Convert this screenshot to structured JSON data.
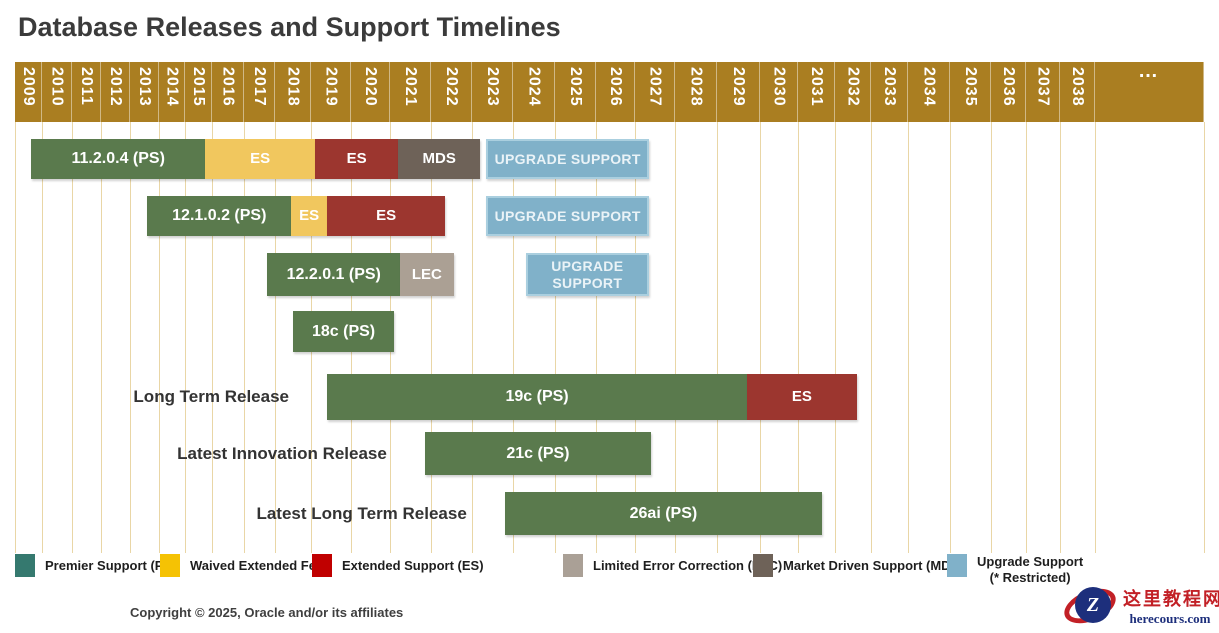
{
  "title": "Database Releases and Support Timelines",
  "footer": {
    "copyright": "Copyright © 2025, Oracle and/or its affiliates"
  },
  "watermark": {
    "letter": "Z",
    "site_name": "这里教程网",
    "site_url": "herecours.com"
  },
  "colors": {
    "header_band": "#aa7e21",
    "grid_line": "#e9d6a6",
    "bar_ps": "#5a7a4d",
    "bar_waived": "#f1c75e",
    "bar_es": "#9c362f",
    "bar_mds": "#6e6258",
    "bar_lec": "#aba094",
    "bar_upgrade": "#80b1c9",
    "bar_upgrade_border": "#aacfdf",
    "legend_ps": "#35796f",
    "legend_waived": "#f5c204",
    "legend_es": "#c00000",
    "legend_lec": "#aaa096",
    "legend_mds": "#6e6258",
    "legend_upgrade": "#80b1c9"
  },
  "chart_data": {
    "type": "gantt",
    "title": "Database Releases and Support Timelines",
    "x_axis": {
      "start_year": 2009,
      "end_year": 2038,
      "overflow_label": "…",
      "years": [
        "2009",
        "2010",
        "2011",
        "2012",
        "2013",
        "2014",
        "2015",
        "2016",
        "2017",
        "2018",
        "2019",
        "2020",
        "2021",
        "2022",
        "2023",
        "2024",
        "2025",
        "2026",
        "2027",
        "2028",
        "2029",
        "2030",
        "2031",
        "2032",
        "2033",
        "2034",
        "2035",
        "2036",
        "2037",
        "2038"
      ]
    },
    "rows": [
      {
        "release": "11.2.0.4",
        "row_label": "",
        "segments": [
          {
            "kind": "ps",
            "label": "11.2.0.4 (PS)",
            "start": 2009.6,
            "end": 2015.75
          },
          {
            "kind": "waived",
            "label": "ES",
            "start": 2015.75,
            "end": 2019.1
          },
          {
            "kind": "es",
            "label": "ES",
            "start": 2019.1,
            "end": 2021.2
          },
          {
            "kind": "mds",
            "label": "MDS",
            "start": 2021.2,
            "end": 2023.2
          },
          {
            "kind": "upgrade",
            "label": "UPGRADE SUPPORT",
            "start": 2023.35,
            "end": 2027.35
          }
        ]
      },
      {
        "release": "12.1.0.2",
        "row_label": "",
        "segments": [
          {
            "kind": "ps",
            "label": "12.1.0.2 (PS)",
            "start": 2013.6,
            "end": 2018.45
          },
          {
            "kind": "waived",
            "label": "ES",
            "start": 2018.45,
            "end": 2019.4
          },
          {
            "kind": "es",
            "label": "ES",
            "start": 2019.4,
            "end": 2022.35
          },
          {
            "kind": "upgrade",
            "label": "UPGRADE SUPPORT",
            "start": 2023.35,
            "end": 2027.35
          }
        ]
      },
      {
        "release": "12.2.0.1",
        "row_label": "",
        "segments": [
          {
            "kind": "ps",
            "label": "12.2.0.1 (PS)",
            "start": 2017.75,
            "end": 2021.25
          },
          {
            "kind": "lec",
            "label": "LEC",
            "start": 2021.25,
            "end": 2022.55
          },
          {
            "kind": "upgrade",
            "label": "UPGRADE SUPPORT",
            "start": 2024.3,
            "end": 2027.35
          }
        ]
      },
      {
        "release": "18c",
        "row_label": "",
        "segments": [
          {
            "kind": "ps",
            "label": "18c (PS)",
            "start": 2018.5,
            "end": 2021.1
          }
        ]
      },
      {
        "release": "19c",
        "row_label": "Long Term Release",
        "segments": [
          {
            "kind": "ps",
            "label": "19c (PS)",
            "start": 2019.4,
            "end": 2029.7
          },
          {
            "kind": "es",
            "label": "ES",
            "start": 2029.7,
            "end": 2032.6
          }
        ]
      },
      {
        "release": "21c",
        "row_label": "Latest Innovation Release",
        "segments": [
          {
            "kind": "ps",
            "label": "21c (PS)",
            "start": 2021.85,
            "end": 2027.4
          }
        ]
      },
      {
        "release": "26ai",
        "row_label": "Latest Long Term Release",
        "segments": [
          {
            "kind": "ps",
            "label": "26ai (PS)",
            "start": 2023.8,
            "end": 2031.65
          }
        ]
      }
    ],
    "legend": [
      {
        "kind": "ps",
        "label": "Premier Support (PS)"
      },
      {
        "kind": "waived",
        "label": "Waived Extended Fee"
      },
      {
        "kind": "es",
        "label": "Extended Support (ES)"
      },
      {
        "kind": "lec",
        "label": "Limited Error Correction (LEC)"
      },
      {
        "kind": "mds",
        "label": "Market Driven Support (MDS)"
      },
      {
        "kind": "upgrade",
        "label": "Upgrade Support",
        "label2": "(* Restricted)"
      }
    ]
  }
}
